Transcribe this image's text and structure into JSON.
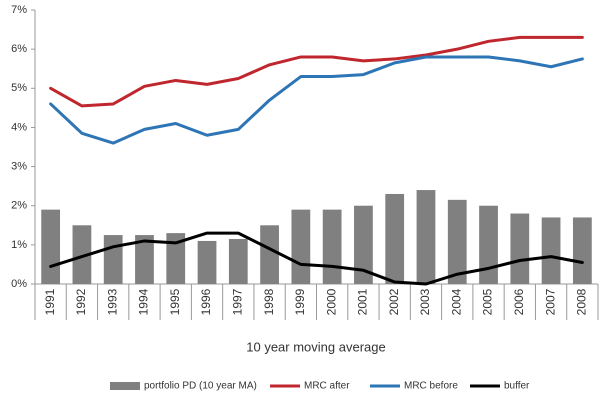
{
  "chart_data": {
    "type": "combo",
    "x_label": "10 year moving average",
    "categories": [
      "1991",
      "1992",
      "1993",
      "1994",
      "1995",
      "1996",
      "1997",
      "1998",
      "1999",
      "2000",
      "2001",
      "2002",
      "2003",
      "2004",
      "2005",
      "2006",
      "2007",
      "2008"
    ],
    "series": [
      {
        "name": "portfolio PD (10 year MA)",
        "type": "bar",
        "color": "#808080",
        "values": [
          1.9,
          1.5,
          1.25,
          1.25,
          1.3,
          1.1,
          1.15,
          1.5,
          1.9,
          1.9,
          2.0,
          2.3,
          2.4,
          2.15,
          2.0,
          1.8,
          1.7,
          1.7
        ]
      },
      {
        "name": "MRC after",
        "type": "line",
        "color": "#c0262d",
        "values": [
          5.0,
          4.55,
          4.6,
          5.05,
          5.2,
          5.1,
          5.25,
          5.6,
          5.8,
          5.8,
          5.7,
          5.75,
          5.85,
          6.0,
          6.2,
          6.3,
          6.3,
          6.3
        ]
      },
      {
        "name": "MRC before",
        "type": "line",
        "color": "#2e75b6",
        "values": [
          4.6,
          3.85,
          3.6,
          3.95,
          4.1,
          3.8,
          3.95,
          4.7,
          5.3,
          5.3,
          5.35,
          5.65,
          5.8,
          5.8,
          5.8,
          5.7,
          5.55,
          5.75
        ]
      },
      {
        "name": "buffer",
        "type": "line",
        "color": "#000000",
        "values": [
          0.45,
          0.7,
          0.95,
          1.1,
          1.05,
          1.3,
          1.3,
          0.9,
          0.5,
          0.45,
          0.35,
          0.05,
          0.0,
          0.25,
          0.4,
          0.6,
          0.7,
          0.55
        ]
      }
    ],
    "ylim": [
      0,
      7
    ],
    "yticks": [
      {
        "value": 0,
        "label": "0%"
      },
      {
        "value": 1,
        "label": "1%"
      },
      {
        "value": 2,
        "label": "2%"
      },
      {
        "value": 3,
        "label": "3%"
      },
      {
        "value": 4,
        "label": "4%"
      },
      {
        "value": 5,
        "label": "5%"
      },
      {
        "value": 6,
        "label": "6%"
      },
      {
        "value": 7,
        "label": "7%"
      }
    ],
    "legend": "bottom"
  }
}
